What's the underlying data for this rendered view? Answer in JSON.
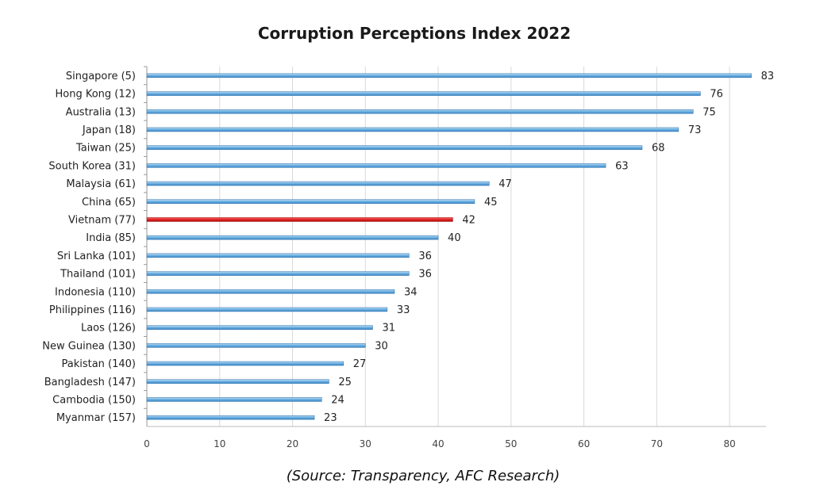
{
  "chart_data": {
    "type": "bar",
    "orientation": "horizontal",
    "title": "Corruption Perceptions Index 2022",
    "categories": [
      "Singapore (5)",
      "Hong Kong (12)",
      "Australia (13)",
      "Japan (18)",
      "Taiwan (25)",
      "South Korea (31)",
      "Malaysia (61)",
      "China (65)",
      "Vietnam (77)",
      "India (85)",
      "Sri Lanka (101)",
      "Thailand (101)",
      "Indonesia (110)",
      "Philippines (116)",
      "Laos (126)",
      "New Guinea (130)",
      "Pakistan (140)",
      "Bangladesh (147)",
      "Cambodia (150)",
      "Myanmar (157)"
    ],
    "values": [
      83,
      76,
      75,
      73,
      68,
      63,
      47,
      45,
      42,
      40,
      36,
      36,
      34,
      33,
      31,
      30,
      27,
      25,
      24,
      23
    ],
    "highlight_category": "Vietnam (77)",
    "xlim": [
      0,
      85
    ],
    "xticks": [
      0,
      10,
      20,
      30,
      40,
      50,
      60,
      70,
      80
    ],
    "grid": true,
    "xlabel": "",
    "ylabel": "",
    "colors": {
      "bar": "#6aaee0",
      "bar_edge": "#2f6fa8",
      "highlight": "#e02020",
      "grid": "#d9d9d9"
    }
  },
  "source_note": "(Source: Transparency, AFC Research)"
}
